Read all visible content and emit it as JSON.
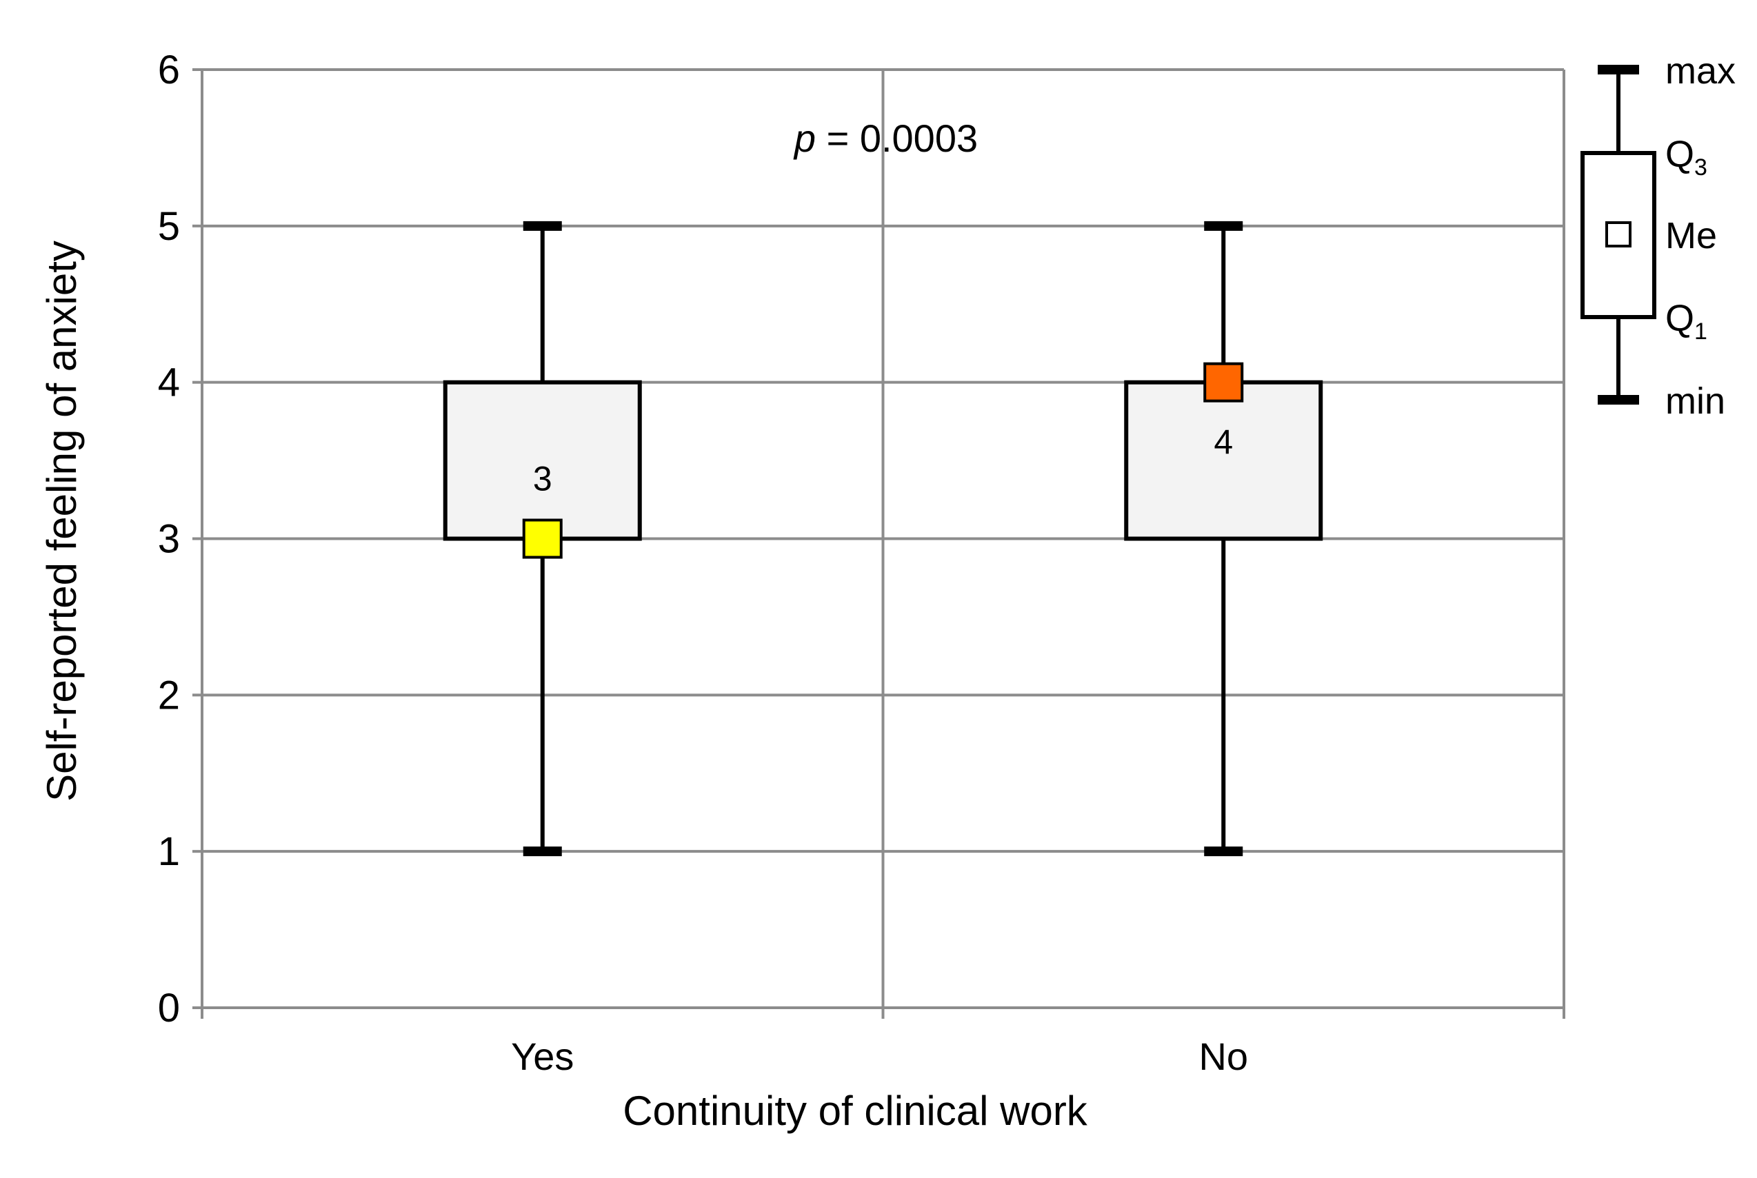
{
  "chart_data": {
    "type": "boxplot",
    "xlabel": "Continuity of clinical work",
    "ylabel": "Self-reported feeling of anxiety",
    "ylim": [
      0,
      6
    ],
    "yticks": [
      0,
      1,
      2,
      3,
      4,
      5,
      6
    ],
    "grid": true,
    "annotation": {
      "prefix": "p",
      "text": " = 0.0003"
    },
    "categories": [
      "Yes",
      "No"
    ],
    "boxes": [
      {
        "category": "Yes",
        "min": 1,
        "q1": 3,
        "median": 3,
        "q3": 4,
        "max": 5,
        "median_label": "3",
        "median_color": "#ffff00"
      },
      {
        "category": "No",
        "min": 1,
        "q1": 3,
        "median": 4,
        "q3": 4,
        "max": 5,
        "median_label": "4",
        "median_color": "#ff6600"
      }
    ],
    "legend": {
      "position": "right",
      "items": [
        {
          "label": "max",
          "sub": ""
        },
        {
          "label": "Q",
          "sub": "3"
        },
        {
          "label": "Me",
          "sub": ""
        },
        {
          "label": "Q",
          "sub": "1"
        },
        {
          "label": "min",
          "sub": ""
        }
      ]
    }
  }
}
